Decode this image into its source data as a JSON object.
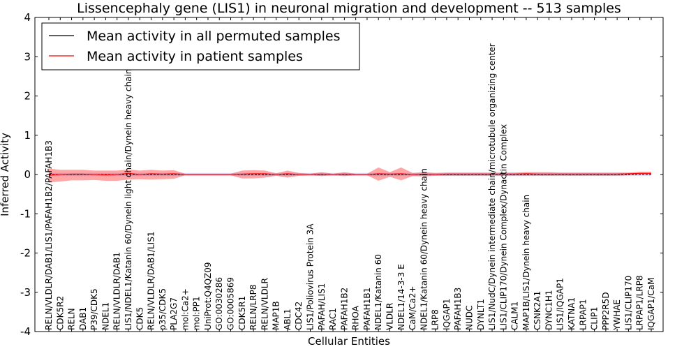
{
  "chart_data": {
    "type": "line",
    "title": "Lissencephaly gene (LIS1) in neuronal migration and development -- 513 samples",
    "xlabel": "Cellular Entities",
    "ylabel": "Inferred Activity",
    "ylim": [
      -4,
      4
    ],
    "yticks": [
      "-4",
      "-3",
      "-2",
      "-1",
      "0",
      "1",
      "2",
      "3",
      "4"
    ],
    "legend_position": "top-left",
    "categories": [
      "RELN/VLDLR/DAB1/LIS1/PAFAH1B2/PAFAH1B3",
      "CDK5R2",
      "RELN",
      "DAB1",
      "P39/CDK5",
      "NDEL1",
      "RELN/VLDLR/DAB1",
      "LIS1/NDEL1/Katanin 60/Dynein light chain/Dynein heavy chain",
      "CDK5",
      "RELN/VLDLR/DAB1/LIS1",
      "p35/CDK5",
      "PLA2G7",
      "mol:Ca2+",
      "mol:PP1",
      "UniProt:Q4QZ09",
      "GO:0030286",
      "GO:0005869",
      "CDK5R1",
      "RELN/LRP8",
      "RELN/VLDLR",
      "MAP1B",
      "ABL1",
      "CDC42",
      "LIS1/Poliovirus Protein 3A",
      "PAFAH/LIS1",
      "RAC1",
      "PAFAH1B2",
      "RHOA",
      "PAFAH1B1",
      "NDEL1/Katanin 60",
      "VLDLR",
      "NDEL1/14-3-3 E",
      "CaM/Ca2+",
      "NDEL1/Katanin 60/Dynein heavy chain",
      "LRP8",
      "IQGAP1",
      "PAFAH1B3",
      "NUDC",
      "DYNLT1",
      "LIS1/NudC/Dynein intermediate chain/microtubule organizing center",
      "LIS1/CLIP170/Dynein Complex/Dynactin Complex",
      "CALM1",
      "MAP1B/LIS1/Dynein heavy chain",
      "CSNK2A1",
      "DYNC1H1",
      "LIS1/IQGAP1",
      "KATNA1",
      "LRPAP1",
      "CLIP1",
      "PPP2R5D",
      "YWHAE",
      "LIS1/CLIP170",
      "LRPAP1/LRP8",
      "IQGAP1/CaM"
    ],
    "series": [
      {
        "name": "Mean activity in all permuted samples",
        "color": "#000000",
        "values": [
          0.0,
          0.0,
          0.0,
          0.0,
          0.0,
          0.0,
          0.0,
          0.0,
          0.0,
          0.0,
          0.0,
          0.0,
          0.0,
          0.0,
          0.0,
          0.0,
          0.0,
          0.0,
          0.0,
          0.0,
          0.0,
          0.0,
          0.0,
          0.0,
          0.0,
          0.0,
          0.0,
          0.0,
          0.0,
          0.0,
          0.0,
          0.0,
          0.0,
          0.0,
          0.0,
          0.0,
          0.0,
          0.0,
          0.0,
          0.0,
          0.0,
          0.0,
          0.0,
          0.0,
          0.0,
          0.0,
          0.0,
          0.0,
          0.0,
          0.0,
          0.0,
          0.0,
          0.0,
          0.0
        ],
        "lower": [
          -0.04,
          -0.04,
          -0.04,
          -0.04,
          -0.04,
          -0.04,
          -0.04,
          -0.04,
          -0.04,
          -0.04,
          -0.04,
          -0.04,
          -0.04,
          -0.04,
          -0.04,
          -0.04,
          -0.04,
          -0.04,
          -0.04,
          -0.04,
          -0.04,
          -0.04,
          -0.04,
          -0.04,
          -0.04,
          -0.04,
          -0.04,
          -0.04,
          -0.04,
          -0.04,
          -0.04,
          -0.04,
          -0.04,
          -0.04,
          -0.04,
          -0.04,
          -0.04,
          -0.04,
          -0.04,
          -0.04,
          -0.04,
          -0.04,
          -0.04,
          -0.04,
          -0.04,
          -0.04,
          -0.04,
          -0.04,
          -0.04,
          -0.04,
          -0.04,
          -0.04,
          -0.04,
          -0.04
        ],
        "upper": [
          0.04,
          0.04,
          0.04,
          0.04,
          0.04,
          0.04,
          0.04,
          0.04,
          0.04,
          0.04,
          0.04,
          0.04,
          0.04,
          0.04,
          0.04,
          0.04,
          0.04,
          0.04,
          0.04,
          0.04,
          0.04,
          0.04,
          0.04,
          0.04,
          0.04,
          0.04,
          0.04,
          0.04,
          0.04,
          0.04,
          0.04,
          0.04,
          0.04,
          0.04,
          0.04,
          0.04,
          0.04,
          0.04,
          0.04,
          0.04,
          0.04,
          0.04,
          0.04,
          0.04,
          0.04,
          0.04,
          0.04,
          0.04,
          0.04,
          0.04,
          0.04,
          0.04,
          0.04,
          0.04
        ]
      },
      {
        "name": "Mean activity in patient samples",
        "color": "#ff0000",
        "values": [
          -0.02,
          0.0,
          0.01,
          0.01,
          0.0,
          -0.01,
          0.0,
          0.03,
          0.0,
          0.02,
          0.01,
          0.02,
          0.0,
          0.0,
          0.0,
          0.0,
          0.0,
          0.01,
          0.02,
          0.02,
          0.0,
          0.02,
          0.0,
          0.0,
          0.01,
          0.0,
          0.01,
          0.0,
          0.0,
          0.02,
          0.01,
          0.02,
          0.0,
          0.01,
          0.0,
          0.01,
          0.01,
          0.01,
          0.01,
          0.01,
          0.01,
          0.01,
          0.02,
          0.01,
          0.01,
          0.01,
          0.01,
          0.01,
          0.01,
          0.01,
          0.01,
          0.02,
          0.03,
          0.03
        ],
        "lower": [
          -0.2,
          -0.18,
          -0.15,
          -0.15,
          -0.14,
          -0.16,
          -0.16,
          -0.13,
          -0.12,
          -0.13,
          -0.12,
          -0.11,
          -0.02,
          -0.02,
          -0.02,
          -0.02,
          -0.02,
          -0.1,
          -0.1,
          -0.08,
          -0.03,
          -0.08,
          -0.03,
          -0.02,
          -0.04,
          -0.02,
          -0.04,
          -0.02,
          -0.02,
          -0.16,
          -0.06,
          -0.15,
          -0.04,
          -0.05,
          -0.03,
          -0.03,
          -0.03,
          -0.03,
          -0.03,
          -0.03,
          -0.03,
          -0.03,
          -0.03,
          -0.03,
          -0.03,
          -0.03,
          -0.03,
          -0.03,
          -0.03,
          -0.03,
          -0.03,
          -0.02,
          0.0,
          0.0
        ],
        "upper": [
          0.15,
          0.12,
          0.12,
          0.12,
          0.1,
          0.1,
          0.1,
          0.13,
          0.1,
          0.12,
          0.1,
          0.11,
          0.02,
          0.02,
          0.02,
          0.02,
          0.02,
          0.1,
          0.11,
          0.1,
          0.03,
          0.1,
          0.04,
          0.02,
          0.06,
          0.02,
          0.06,
          0.02,
          0.02,
          0.18,
          0.06,
          0.18,
          0.04,
          0.06,
          0.04,
          0.05,
          0.05,
          0.05,
          0.05,
          0.05,
          0.05,
          0.05,
          0.06,
          0.06,
          0.06,
          0.05,
          0.05,
          0.05,
          0.05,
          0.05,
          0.05,
          0.05,
          0.07,
          0.07
        ]
      }
    ]
  }
}
